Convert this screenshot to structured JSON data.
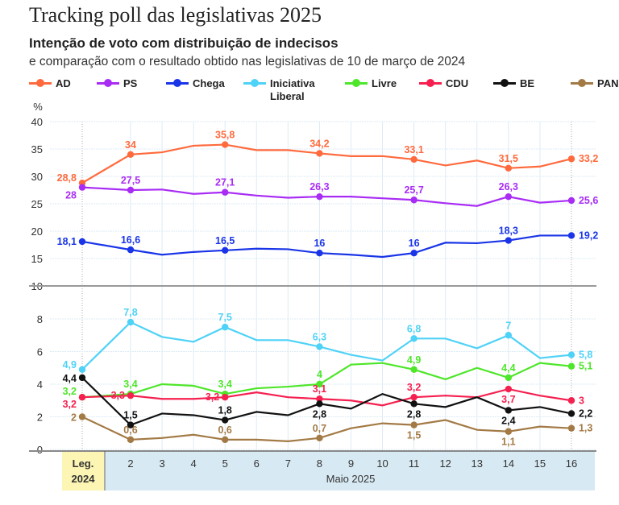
{
  "header": {
    "title": "Tracking poll das legislativas 2025",
    "subtitle": "Intenção de voto com distribuição de indecisos",
    "description": "e comparação com o resultado obtido nas legislativas de 10 de março de 2024"
  },
  "chart_data": {
    "type": "line",
    "title": "Tracking poll das legislativas 2025",
    "ylabel": "%",
    "panels": [
      {
        "ylim": [
          10,
          40
        ],
        "yticks": [
          10,
          15,
          20,
          25,
          30,
          35,
          40
        ],
        "series": [
          "AD",
          "PS",
          "Chega"
        ]
      },
      {
        "ylim": [
          0,
          8
        ],
        "yticks": [
          0,
          2,
          4,
          6,
          8
        ],
        "series": [
          "Iniciativa Liberal",
          "Livre",
          "CDU",
          "BE",
          "PAN"
        ]
      }
    ],
    "categories": [
      "Leg. 2024",
      "2",
      "3",
      "4",
      "5",
      "6",
      "7",
      "8",
      "9",
      "10",
      "11",
      "12",
      "13",
      "14",
      "15",
      "16"
    ],
    "first_category_lines": [
      "Leg.",
      "2024"
    ],
    "xlabel": "Maio 2025",
    "grid": true,
    "legend_position": "top",
    "series": [
      {
        "name": "AD",
        "color": "#ff6a3d",
        "values": [
          28.8,
          34,
          34.4,
          35.6,
          35.8,
          34.8,
          34.8,
          34.2,
          33.7,
          33.7,
          33.1,
          32.0,
          32.9,
          31.5,
          31.8,
          33.2
        ],
        "labels": [
          "28,8",
          "34",
          null,
          null,
          "35,8",
          null,
          null,
          "34,2",
          null,
          null,
          "33,1",
          null,
          null,
          "31,5",
          null,
          "33,2"
        ]
      },
      {
        "name": "PS",
        "color": "#a92cf5",
        "values": [
          28,
          27.5,
          27.6,
          26.8,
          27.1,
          26.5,
          26.1,
          26.3,
          26.3,
          26.0,
          25.7,
          25.1,
          24.6,
          26.3,
          25.2,
          25.6
        ],
        "labels": [
          "28",
          "27,5",
          null,
          null,
          "27,1",
          null,
          null,
          "26,3",
          null,
          null,
          "25,7",
          null,
          null,
          "26,3",
          null,
          "25,6"
        ]
      },
      {
        "name": "Chega",
        "color": "#1a35e8",
        "values": [
          18.1,
          16.6,
          15.7,
          16.2,
          16.5,
          16.8,
          16.7,
          16,
          15.7,
          15.3,
          16,
          17.9,
          17.8,
          18.3,
          19.2,
          19.2
        ],
        "labels": [
          "18,1",
          "16,6",
          null,
          null,
          "16,5",
          null,
          null,
          "16",
          null,
          null,
          "16",
          null,
          null,
          "18,3",
          null,
          "19,2"
        ]
      },
      {
        "name": "Iniciativa Liberal",
        "color": "#4fd2f7",
        "values": [
          4.9,
          7.8,
          6.9,
          6.6,
          7.5,
          6.7,
          6.7,
          6.3,
          5.8,
          5.45,
          6.8,
          6.8,
          6.2,
          7,
          5.6,
          5.8
        ],
        "labels": [
          "4,9",
          "7,8",
          null,
          null,
          "7,5",
          null,
          null,
          "6,3",
          null,
          null,
          "6,8",
          null,
          null,
          "7",
          null,
          "5,8"
        ]
      },
      {
        "name": "Livre",
        "color": "#4ee62a",
        "values": [
          3.2,
          3.4,
          4.0,
          3.9,
          3.4,
          3.75,
          3.85,
          4,
          5.2,
          5.3,
          4.9,
          4.3,
          5.0,
          4.4,
          5.3,
          5.1
        ],
        "labels": [
          "3,2",
          "3,4",
          null,
          null,
          "3,4",
          null,
          null,
          "4",
          null,
          null,
          "4,9",
          null,
          null,
          "4,4",
          null,
          "5,1"
        ]
      },
      {
        "name": "CDU",
        "color": "#f5204f",
        "values": [
          3.2,
          3.3,
          3.1,
          3.1,
          3.2,
          3.5,
          3.2,
          3.1,
          3.0,
          2.7,
          3.2,
          3.3,
          3.2,
          3.7,
          3.3,
          3
        ],
        "labels": [
          "3,2",
          "3,3",
          null,
          null,
          "3,2",
          null,
          null,
          "3,1",
          null,
          null,
          "3,2",
          null,
          null,
          "3,7",
          null,
          "3"
        ]
      },
      {
        "name": "BE",
        "color": "#111111",
        "values": [
          4.4,
          1.5,
          2.2,
          2.1,
          1.8,
          2.3,
          2.1,
          2.8,
          2.5,
          3.4,
          2.8,
          2.6,
          3.2,
          2.4,
          2.6,
          2.2
        ],
        "labels": [
          "4,4",
          "1,5",
          null,
          null,
          "1,8",
          null,
          null,
          "2,8",
          null,
          null,
          "2,8",
          null,
          null,
          "2,4",
          null,
          "2,2"
        ]
      },
      {
        "name": "PAN",
        "color": "#a37a45",
        "values": [
          2,
          0.6,
          0.7,
          0.9,
          0.6,
          0.6,
          0.5,
          0.7,
          1.3,
          1.6,
          1.5,
          1.8,
          1.2,
          1.1,
          1.4,
          1.3
        ],
        "labels": [
          "2",
          "0,6",
          null,
          null,
          "0,6",
          null,
          null,
          "0,7",
          null,
          null,
          "1,5",
          null,
          null,
          "1,1",
          null,
          "1,3"
        ]
      }
    ]
  },
  "colors": {
    "leg_band": "#fcf5b3",
    "month_band": "#d7e9f3",
    "grid": "#dcebf5"
  }
}
